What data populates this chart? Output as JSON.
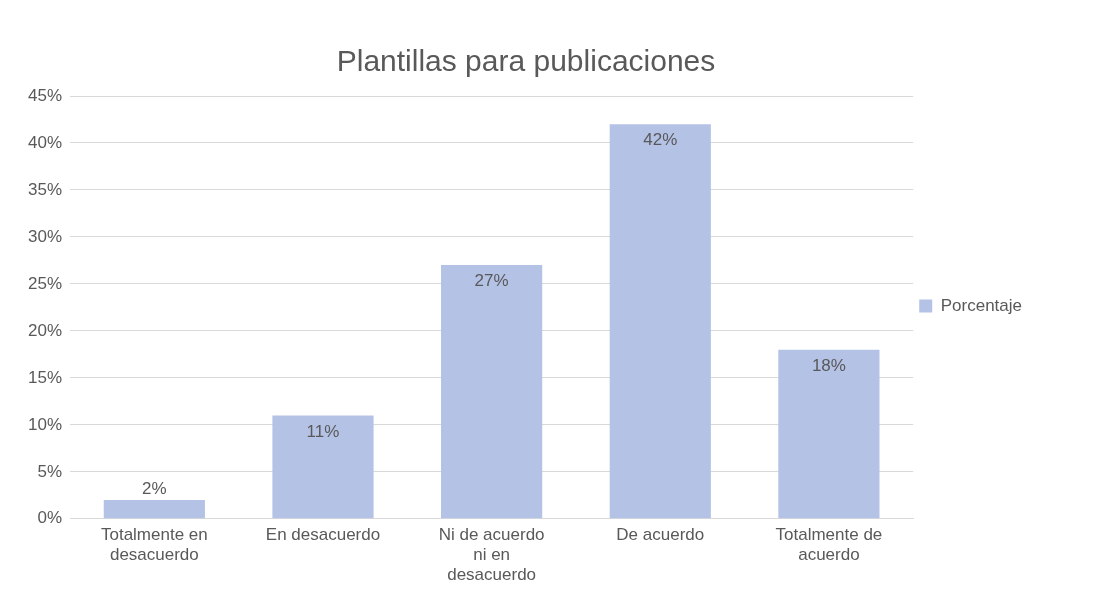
{
  "chart_data": {
    "type": "bar",
    "title": "Plantillas para publicaciones",
    "categories": [
      "Totalmente en desacuerdo",
      "En desacuerdo",
      "Ni de acuerdo ni en desacuerdo",
      "De acuerdo",
      "Totalmente de acuerdo"
    ],
    "series": [
      {
        "name": "Porcentaje",
        "color": "#b4c2e6",
        "values": [
          2,
          11,
          27,
          42,
          18
        ],
        "value_labels": [
          "2%",
          "11%",
          "27%",
          "42%",
          "18%"
        ]
      }
    ],
    "ylim": [
      0,
      45
    ],
    "yticks": [
      {
        "value": 0,
        "label": "0%"
      },
      {
        "value": 5,
        "label": "5%"
      },
      {
        "value": 10,
        "label": "10%"
      },
      {
        "value": 15,
        "label": "15%"
      },
      {
        "value": 20,
        "label": "20%"
      },
      {
        "value": 25,
        "label": "25%"
      },
      {
        "value": 30,
        "label": "30%"
      },
      {
        "value": 35,
        "label": "35%"
      },
      {
        "value": 40,
        "label": "40%"
      },
      {
        "value": 45,
        "label": "45%"
      }
    ],
    "grid": "y",
    "legend": "right"
  }
}
